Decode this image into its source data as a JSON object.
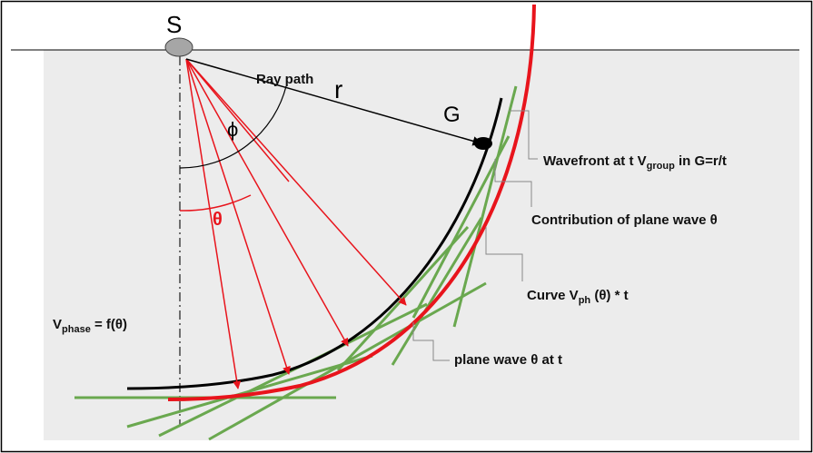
{
  "labels": {
    "source": "S",
    "receiver": "G",
    "ray_path": "Ray path",
    "distance": "r",
    "phi": "ϕ",
    "theta": "θ",
    "wavefront": [
      "Wavefront at t V",
      "group",
      " in G=r/t"
    ],
    "contribution": "Contribution of plane wave θ",
    "curve": [
      "Curve V",
      "ph",
      " (θ) * t"
    ],
    "plane_wave": "plane wave θ at t",
    "phase": [
      "V",
      "phase",
      " = f(θ)"
    ]
  }
}
